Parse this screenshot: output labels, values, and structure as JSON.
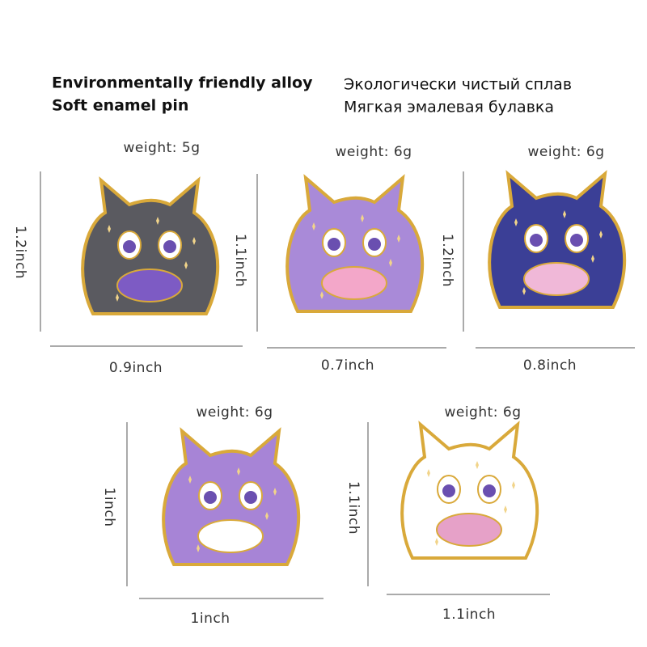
{
  "header": {
    "en": [
      "Environmentally friendly alloy",
      "Soft enamel pin"
    ],
    "ru": [
      "Экологически чистый сплав",
      "Мягкая эмалевая булавка"
    ]
  },
  "pins": [
    {
      "weight": "weight: 5g",
      "height": "1.2inch",
      "width": "0.9inch"
    },
    {
      "weight": "weight: 6g",
      "height": "1.1inch",
      "width": "0.7inch"
    },
    {
      "weight": "weight: 6g",
      "height": "1.2inch",
      "width": "0.8inch"
    },
    {
      "weight": "weight: 6g",
      "height": "1inch",
      "width": "1inch"
    },
    {
      "weight": "weight: 6g",
      "height": "1.1inch",
      "width": "1.1inch"
    }
  ]
}
